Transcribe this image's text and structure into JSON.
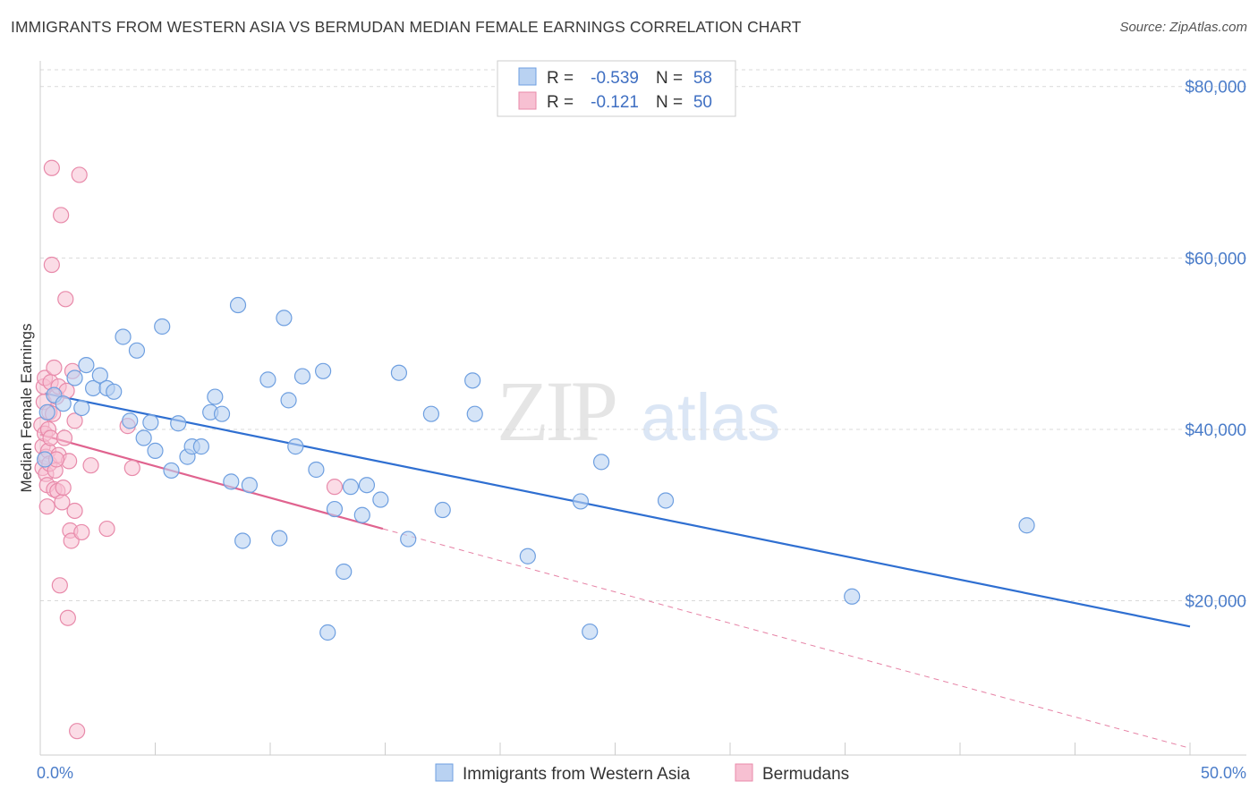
{
  "title": "IMMIGRANTS FROM WESTERN ASIA VS BERMUDAN MEDIAN FEMALE EARNINGS CORRELATION CHART",
  "source": "Source: ZipAtlas.com",
  "watermark": {
    "zip": "ZIP",
    "atlas": "atlas"
  },
  "colors": {
    "blue_fill": "#b9d2f2",
    "blue_stroke": "#6e9fe0",
    "blue_line": "#2f6fd1",
    "pink_fill": "#f7c0d2",
    "pink_stroke": "#e88aaa",
    "pink_line": "#e0638f",
    "grid": "#d9d9d9",
    "tick_text": "#4a7cc9"
  },
  "legend": {
    "rows": [
      {
        "r_label": "R =",
        "r_value": "-0.539",
        "n_label": "N =",
        "n_value": "58"
      },
      {
        "r_label": "R =",
        "r_value": "-0.121",
        "n_label": "N =",
        "n_value": "50"
      }
    ]
  },
  "chart_data": {
    "type": "scatter",
    "title": "IMMIGRANTS FROM WESTERN ASIA VS BERMUDAN MEDIAN FEMALE EARNINGS CORRELATION CHART",
    "xlabel": "",
    "ylabel": "Median Female Earnings",
    "xlim": [
      0,
      50
    ],
    "ylim": [
      2000,
      83000
    ],
    "x_tick_labels": [
      "0.0%",
      "50.0%"
    ],
    "y_ticks": [
      20000,
      40000,
      60000,
      80000
    ],
    "y_tick_labels": [
      "$20,000",
      "$40,000",
      "$60,000",
      "$80,000"
    ],
    "grid": true,
    "legend_position": "bottom-center",
    "series": [
      {
        "name": "Immigrants from Western Asia",
        "r": -0.539,
        "n": 58,
        "points": [
          [
            0.2,
            36500
          ],
          [
            0.3,
            42000
          ],
          [
            0.6,
            44000
          ],
          [
            1.0,
            43000
          ],
          [
            1.5,
            46000
          ],
          [
            1.8,
            42500
          ],
          [
            2.0,
            47500
          ],
          [
            2.3,
            44800
          ],
          [
            2.6,
            46300
          ],
          [
            2.9,
            44800
          ],
          [
            3.2,
            44400
          ],
          [
            3.6,
            50800
          ],
          [
            3.9,
            41000
          ],
          [
            4.2,
            49200
          ],
          [
            4.5,
            39000
          ],
          [
            4.8,
            40800
          ],
          [
            5.0,
            37500
          ],
          [
            5.3,
            52000
          ],
          [
            5.7,
            35200
          ],
          [
            6.0,
            40700
          ],
          [
            6.4,
            36800
          ],
          [
            6.6,
            38000
          ],
          [
            7.0,
            38000
          ],
          [
            7.4,
            42000
          ],
          [
            7.6,
            43800
          ],
          [
            7.9,
            41800
          ],
          [
            8.3,
            33900
          ],
          [
            8.6,
            54500
          ],
          [
            8.8,
            27000
          ],
          [
            9.1,
            33500
          ],
          [
            9.9,
            45800
          ],
          [
            10.4,
            27300
          ],
          [
            10.6,
            53000
          ],
          [
            10.8,
            43400
          ],
          [
            11.1,
            38000
          ],
          [
            11.4,
            46200
          ],
          [
            12.0,
            35300
          ],
          [
            12.3,
            46800
          ],
          [
            12.5,
            16300
          ],
          [
            12.8,
            30700
          ],
          [
            13.2,
            23400
          ],
          [
            13.5,
            33300
          ],
          [
            14.0,
            30000
          ],
          [
            14.2,
            33500
          ],
          [
            14.8,
            31800
          ],
          [
            15.6,
            46600
          ],
          [
            16.0,
            27200
          ],
          [
            17.0,
            41800
          ],
          [
            17.5,
            30600
          ],
          [
            18.8,
            45700
          ],
          [
            18.9,
            41800
          ],
          [
            21.2,
            25200
          ],
          [
            23.5,
            31600
          ],
          [
            23.9,
            16400
          ],
          [
            24.4,
            36200
          ],
          [
            27.2,
            31700
          ],
          [
            35.3,
            20500
          ],
          [
            42.9,
            28800
          ]
        ],
        "trend": {
          "x0": 0.2,
          "y0": 44200,
          "x1": 50.0,
          "y1": 17000
        }
      },
      {
        "name": "Bermudans",
        "r": -0.121,
        "n": 50,
        "points": [
          [
            0.05,
            40500
          ],
          [
            0.1,
            38000
          ],
          [
            0.1,
            35500
          ],
          [
            0.15,
            43200
          ],
          [
            0.15,
            45000
          ],
          [
            0.2,
            46000
          ],
          [
            0.2,
            39500
          ],
          [
            0.25,
            36800
          ],
          [
            0.25,
            34800
          ],
          [
            0.3,
            31000
          ],
          [
            0.3,
            33500
          ],
          [
            0.35,
            40000
          ],
          [
            0.35,
            37500
          ],
          [
            0.4,
            42000
          ],
          [
            0.4,
            36000
          ],
          [
            0.45,
            45500
          ],
          [
            0.45,
            39000
          ],
          [
            0.5,
            70500
          ],
          [
            0.5,
            59200
          ],
          [
            0.55,
            41800
          ],
          [
            0.6,
            33000
          ],
          [
            0.6,
            47200
          ],
          [
            0.65,
            35200
          ],
          [
            0.7,
            43800
          ],
          [
            0.75,
            32800
          ],
          [
            0.8,
            45000
          ],
          [
            0.8,
            37000
          ],
          [
            0.85,
            21800
          ],
          [
            0.9,
            65000
          ],
          [
            0.95,
            31500
          ],
          [
            1.0,
            33200
          ],
          [
            1.05,
            39000
          ],
          [
            1.1,
            55200
          ],
          [
            1.15,
            44500
          ],
          [
            1.2,
            18000
          ],
          [
            1.25,
            36300
          ],
          [
            1.3,
            28200
          ],
          [
            1.35,
            27000
          ],
          [
            1.4,
            46800
          ],
          [
            1.5,
            41000
          ],
          [
            1.5,
            30500
          ],
          [
            1.6,
            4800
          ],
          [
            1.7,
            69700
          ],
          [
            1.8,
            28000
          ],
          [
            2.2,
            35800
          ],
          [
            2.9,
            28400
          ],
          [
            3.8,
            40400
          ],
          [
            4.0,
            35500
          ],
          [
            12.8,
            33300
          ],
          [
            0.7,
            36500
          ]
        ],
        "trend": {
          "x0": 0.0,
          "y0": 39400,
          "x1": 14.9,
          "y1": 28400
        },
        "trend_extension": {
          "x0": 14.9,
          "y0": 28400,
          "x1": 50.0,
          "y1": 2800
        }
      }
    ]
  }
}
